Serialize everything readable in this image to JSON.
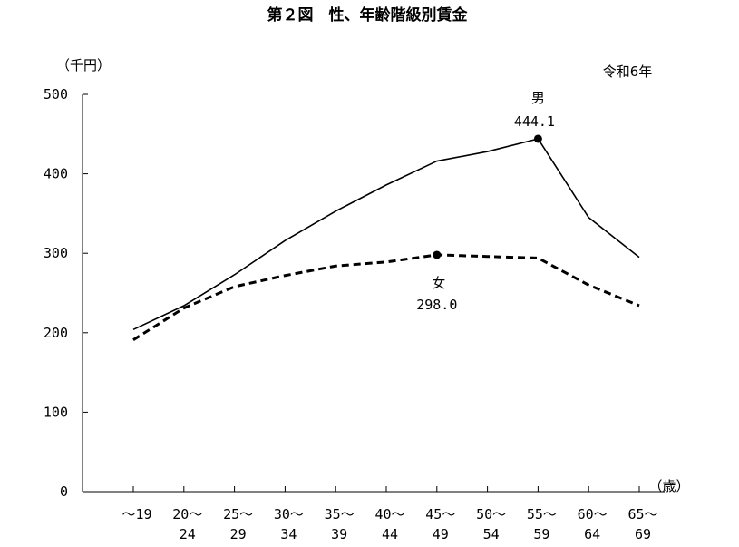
{
  "chart_data": {
    "type": "line",
    "title": "第２図　性、年齢階級別賃金",
    "unit_label": "（千円）",
    "year_note": "令和6年",
    "xlabel": "（歳）",
    "categories": [
      [
        "～19",
        ""
      ],
      [
        "20～",
        "24"
      ],
      [
        "25～",
        "29"
      ],
      [
        "30～",
        "34"
      ],
      [
        "35～",
        "39"
      ],
      [
        "40～",
        "44"
      ],
      [
        "45～",
        "49"
      ],
      [
        "50～",
        "54"
      ],
      [
        "55～",
        "59"
      ],
      [
        "60～",
        "64"
      ],
      [
        "65～",
        "69"
      ]
    ],
    "ylim": [
      0,
      500
    ],
    "yticks": [
      "0",
      "100",
      "200",
      "300",
      "400",
      "500"
    ],
    "grid": false,
    "series": [
      {
        "name": "男",
        "style": "solid",
        "values": [
          204,
          234,
          273,
          316,
          353,
          386,
          416,
          428,
          444.1,
          345,
          295
        ],
        "marker_index": 8,
        "marker_label": "444.1"
      },
      {
        "name": "女",
        "style": "dashed",
        "values": [
          191,
          231,
          258,
          272,
          284,
          289,
          298.0,
          296,
          294,
          260,
          234
        ],
        "marker_index": 6,
        "marker_label": "298.0"
      }
    ],
    "colors": {
      "line": "#000000"
    }
  }
}
